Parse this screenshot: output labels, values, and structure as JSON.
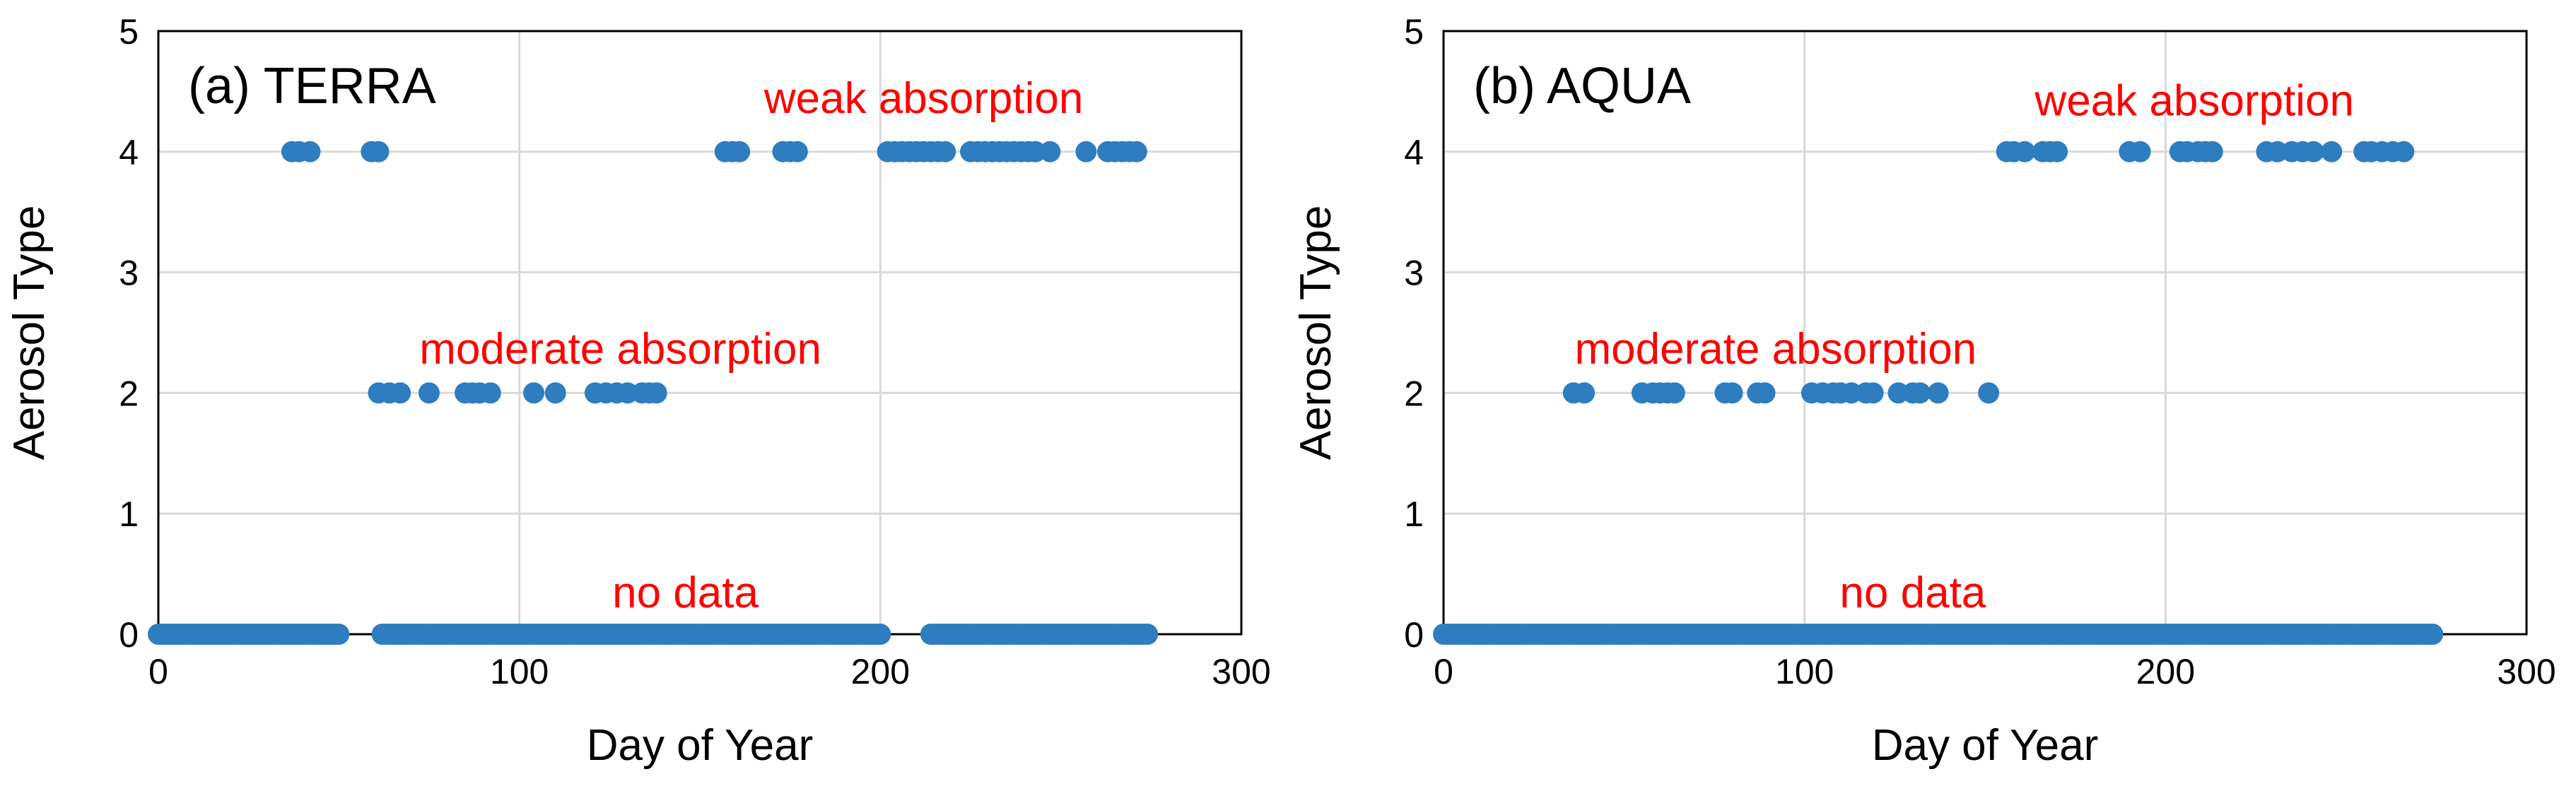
{
  "chart_data": [
    {
      "type": "scatter",
      "title": "(a) TERRA",
      "xlabel": "Day of Year",
      "ylabel": "Aerosol Type",
      "xlim": [
        0,
        300
      ],
      "ylim": [
        0,
        5
      ],
      "x_ticks": [
        "0",
        "100",
        "200",
        "300"
      ],
      "y_ticks": [
        "0",
        "1",
        "2",
        "3",
        "4",
        "5"
      ],
      "grid": true,
      "point_color": "#2E7DC0",
      "annotation_color": "#FF0000",
      "annotations": [
        {
          "text": "weak absorption",
          "x": 212,
          "y": 4.45
        },
        {
          "text": "moderate absorption",
          "x": 128,
          "y": 2.37
        },
        {
          "text": "no data",
          "x": 146,
          "y": 0.35
        }
      ],
      "series": [
        {
          "points_y0_ranges": [
            [
              0,
              50
            ],
            [
              62,
              200
            ],
            [
              214,
              274
            ]
          ],
          "points_y4": [
            37,
            39,
            42,
            59,
            61,
            157,
            159,
            161,
            173,
            175,
            177,
            202,
            204,
            206,
            208,
            210,
            212,
            214,
            216,
            218,
            225,
            227,
            229,
            231,
            233,
            235,
            237,
            239,
            241,
            243,
            247,
            257,
            263,
            265,
            267,
            269,
            271
          ],
          "points_y2": [
            61,
            64,
            67,
            75,
            85,
            87,
            89,
            92,
            104,
            110,
            121,
            124,
            127,
            130,
            134,
            136,
            138
          ]
        }
      ]
    },
    {
      "type": "scatter",
      "title": "(b) AQUA",
      "xlabel": "Day of Year",
      "ylabel": "Aerosol Type",
      "xlim": [
        0,
        300
      ],
      "ylim": [
        0,
        5
      ],
      "x_ticks": [
        "0",
        "100",
        "200",
        "300"
      ],
      "y_ticks": [
        "0",
        "1",
        "2",
        "3",
        "4",
        "5"
      ],
      "grid": true,
      "point_color": "#2E7DC0",
      "annotation_color": "#FF0000",
      "annotations": [
        {
          "text": "weak absorption",
          "x": 208,
          "y": 4.43
        },
        {
          "text": "moderate absorption",
          "x": 92,
          "y": 2.37
        },
        {
          "text": "no data",
          "x": 130,
          "y": 0.35
        }
      ],
      "series": [
        {
          "points_y0_ranges": [
            [
              0,
              274
            ]
          ],
          "points_y4": [
            156,
            158,
            161,
            166,
            168,
            170,
            190,
            193,
            204,
            206,
            209,
            211,
            213,
            228,
            231,
            235,
            238,
            241,
            246,
            255,
            257,
            260,
            263,
            266
          ],
          "points_y2": [
            36,
            39,
            55,
            58,
            60,
            62,
            64,
            78,
            80,
            87,
            89,
            102,
            105,
            108,
            110,
            113,
            117,
            119,
            126,
            130,
            132,
            137,
            151
          ]
        }
      ]
    }
  ]
}
